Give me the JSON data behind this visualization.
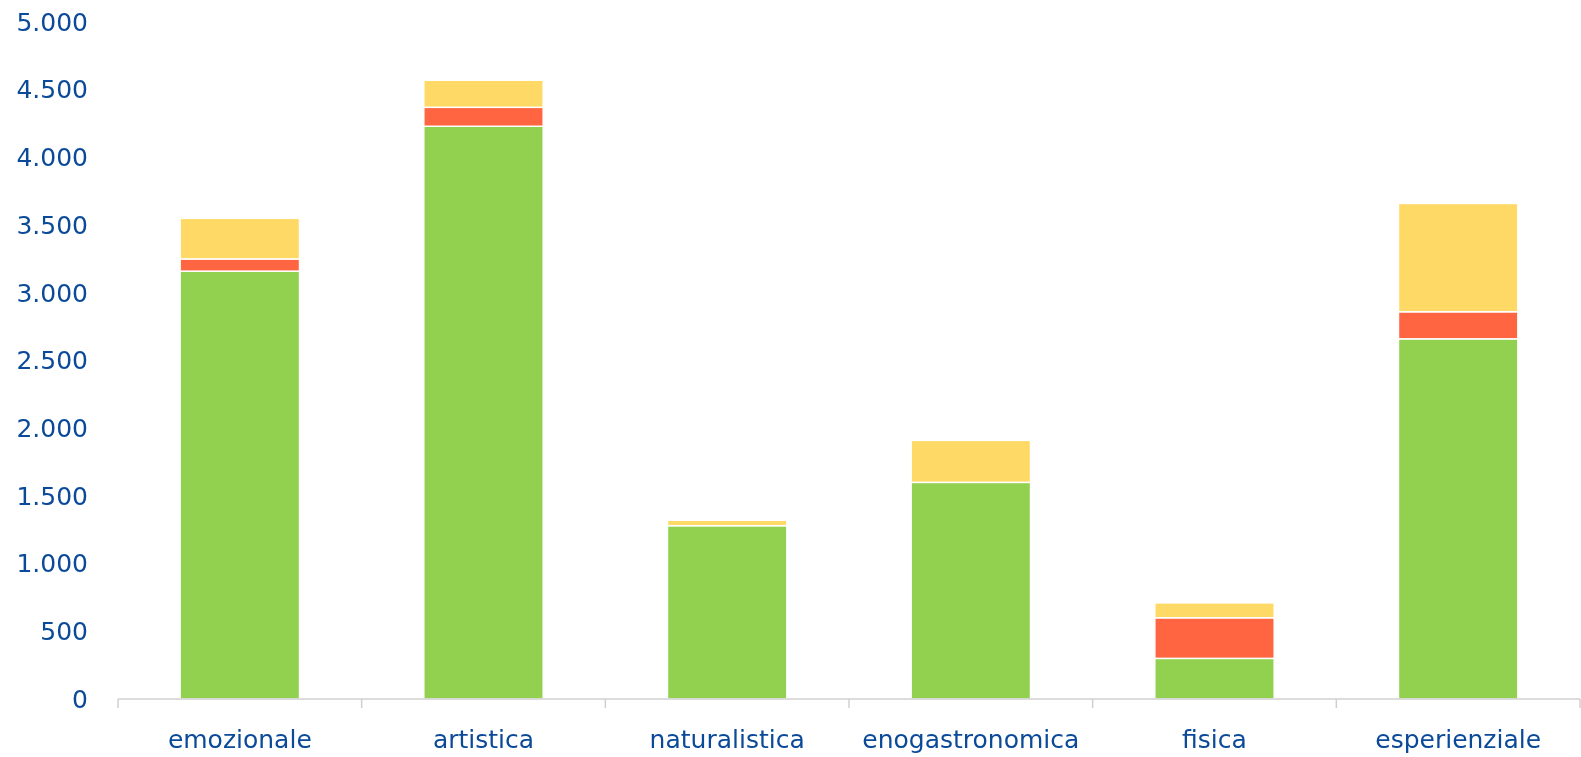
{
  "chart_data": {
    "type": "bar",
    "stacked": true,
    "categories": [
      "emozionale",
      "artistica",
      "naturalistica",
      "enogastronomica",
      "fisica",
      "esperienziale"
    ],
    "series": [
      {
        "color": "#92d050",
        "values": [
          3160,
          4230,
          1280,
          1600,
          300,
          2660
        ]
      },
      {
        "color": "#ff6540",
        "values": [
          90,
          140,
          0,
          0,
          300,
          200
        ]
      },
      {
        "color": "#ffd966",
        "values": [
          300,
          200,
          40,
          310,
          110,
          800
        ]
      }
    ],
    "ylim": [
      0,
      5000
    ],
    "yticks": [
      {
        "value": 0,
        "label": "0"
      },
      {
        "value": 500,
        "label": "500"
      },
      {
        "value": 1000,
        "label": "1.000"
      },
      {
        "value": 1500,
        "label": "1.500"
      },
      {
        "value": 2000,
        "label": "2.000"
      },
      {
        "value": 2500,
        "label": "2.500"
      },
      {
        "value": 3000,
        "label": "3.000"
      },
      {
        "value": 3500,
        "label": "3.500"
      },
      {
        "value": 4000,
        "label": "4.000"
      },
      {
        "value": 4500,
        "label": "4.500"
      },
      {
        "value": 5000,
        "label": "5.000"
      }
    ],
    "grid": false
  }
}
